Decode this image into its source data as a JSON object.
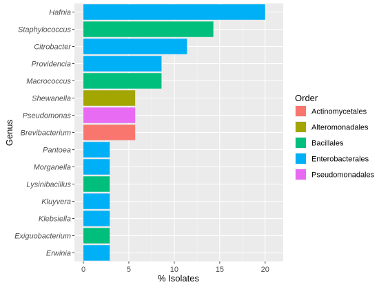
{
  "chart_data": {
    "type": "bar",
    "orientation": "horizontal",
    "xlabel": "% Isolates",
    "ylabel": "Genus",
    "xlim": [
      0,
      21
    ],
    "xticks": [
      0,
      5,
      10,
      15,
      20
    ],
    "grid": true,
    "legend": {
      "title": "Order",
      "placement": "right",
      "entries": [
        {
          "name": "Actinomycetales",
          "color": "#F8766D"
        },
        {
          "name": "Alteromonadales",
          "color": "#A3A500"
        },
        {
          "name": "Bacillales",
          "color": "#00BF7D"
        },
        {
          "name": "Enterobacterales",
          "color": "#00B0F6"
        },
        {
          "name": "Pseudomonadales",
          "color": "#E76BF3"
        }
      ]
    },
    "bars": [
      {
        "category": "Hafnia",
        "value": 20.0,
        "order": "Enterobacterales"
      },
      {
        "category": "Staphylococcus",
        "value": 14.3,
        "order": "Bacillales"
      },
      {
        "category": "Citrobacter",
        "value": 11.4,
        "order": "Enterobacterales"
      },
      {
        "category": "Providencia",
        "value": 8.6,
        "order": "Enterobacterales"
      },
      {
        "category": "Macrococcus",
        "value": 8.6,
        "order": "Bacillales"
      },
      {
        "category": "Shewanella",
        "value": 5.7,
        "order": "Alteromonadales"
      },
      {
        "category": "Pseudomonas",
        "value": 5.7,
        "order": "Pseudomonadales"
      },
      {
        "category": "Brevibacterium",
        "value": 5.7,
        "order": "Actinomycetales"
      },
      {
        "category": "Pantoea",
        "value": 2.9,
        "order": "Enterobacterales"
      },
      {
        "category": "Morganella",
        "value": 2.9,
        "order": "Enterobacterales"
      },
      {
        "category": "Lysinibacillus",
        "value": 2.9,
        "order": "Bacillales"
      },
      {
        "category": "Kluyvera",
        "value": 2.9,
        "order": "Enterobacterales"
      },
      {
        "category": "Klebsiella",
        "value": 2.9,
        "order": "Enterobacterales"
      },
      {
        "category": "Exiguobacterium",
        "value": 2.9,
        "order": "Bacillales"
      },
      {
        "category": "Erwinia",
        "value": 2.9,
        "order": "Enterobacterales"
      }
    ]
  }
}
